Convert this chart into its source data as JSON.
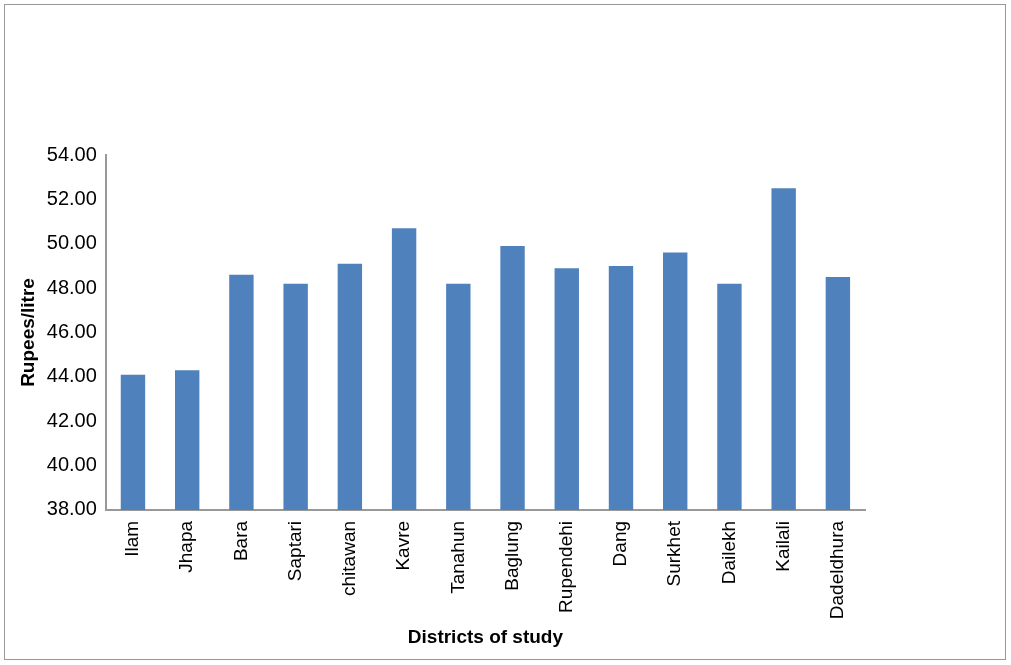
{
  "chart_data": {
    "type": "bar",
    "xlabel": "Districts of study",
    "ylabel": "Rupees/litre",
    "categories": [
      "Ilam",
      "Jhapa",
      "Bara",
      "Saptari",
      "chitawan",
      "Kavre",
      "Tanahun",
      "Baglung",
      "Rupendehi",
      "Dang",
      "Surkhet",
      "Dailekh",
      "Kailali",
      "Dadeldhura"
    ],
    "values": [
      44.1,
      44.3,
      48.6,
      48.2,
      49.1,
      50.7,
      48.2,
      49.9,
      48.9,
      49.0,
      49.6,
      48.2,
      52.5,
      48.5
    ],
    "color": "#4f81bd",
    "ylim": [
      38,
      54
    ],
    "yticks": [
      {
        "value": 38,
        "label": "38.00"
      },
      {
        "value": 40,
        "label": "40.00"
      },
      {
        "value": 42,
        "label": "42.00"
      },
      {
        "value": 44,
        "label": "44.00"
      },
      {
        "value": 46,
        "label": "46.00"
      },
      {
        "value": 48,
        "label": "48.00"
      },
      {
        "value": 50,
        "label": "50.00"
      },
      {
        "value": 52,
        "label": "52.00"
      },
      {
        "value": 54,
        "label": "54.00"
      }
    ],
    "grid": false,
    "legend": false
  }
}
